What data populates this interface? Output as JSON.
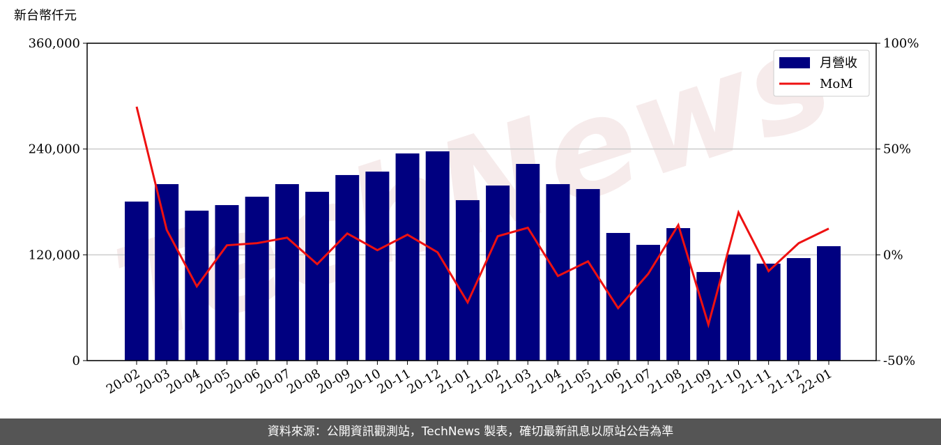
{
  "chart_data": {
    "type": "bar_line",
    "y_label": "新台幣仟元",
    "watermark": "TechNews",
    "categories": [
      "20-02",
      "20-03",
      "20-04",
      "20-05",
      "20-06",
      "20-07",
      "20-08",
      "20-09",
      "20-10",
      "20-11",
      "20-12",
      "21-01",
      "21-02",
      "21-03",
      "21-04",
      "21-05",
      "21-06",
      "21-07",
      "21-08",
      "21-09",
      "21-10",
      "21-11",
      "21-12",
      "22-01"
    ],
    "series": [
      {
        "name": "月營收",
        "color": "#000080",
        "type": "bar",
        "values": [
          180400,
          200200,
          170100,
          176400,
          185900,
          200200,
          191500,
          210500,
          214400,
          235000,
          237400,
          182000,
          198600,
          223100,
          200200,
          194600,
          144800,
          131300,
          150300,
          100500,
          120300,
          110000,
          116300,
          129800
        ]
      },
      {
        "name": "MoM",
        "color": "#ee1111",
        "type": "line",
        "axis": "y2",
        "values": [
          70,
          11.8,
          -14.9,
          4.5,
          5.5,
          8.1,
          -4.4,
          10.1,
          2.2,
          9.5,
          1.2,
          -22.5,
          8.8,
          12.8,
          -10,
          -3.1,
          -25.2,
          -9,
          14.1,
          -33,
          20,
          -7.7,
          5.5,
          12.4
        ]
      }
    ],
    "ylim": [
      0,
      360000
    ],
    "yticks": [
      0,
      {
        "value": 120000,
        "label": "120,000"
      },
      {
        "value": 240000,
        "label": "240,000"
      },
      {
        "value": 360000,
        "label": "360,000"
      }
    ],
    "y2lim": [
      -50,
      100
    ],
    "y2ticks": [
      {
        "value": -50,
        "label": "-50%"
      },
      {
        "value": 0,
        "label": "0%"
      },
      {
        "value": 50,
        "label": "50%"
      },
      {
        "value": 100,
        "label": "100%"
      }
    ],
    "grid": true,
    "legend": "upper right",
    "footer": "資料來源：公開資訊觀測站，TechNews 製表，確切最新訊息以原站公告為準"
  }
}
